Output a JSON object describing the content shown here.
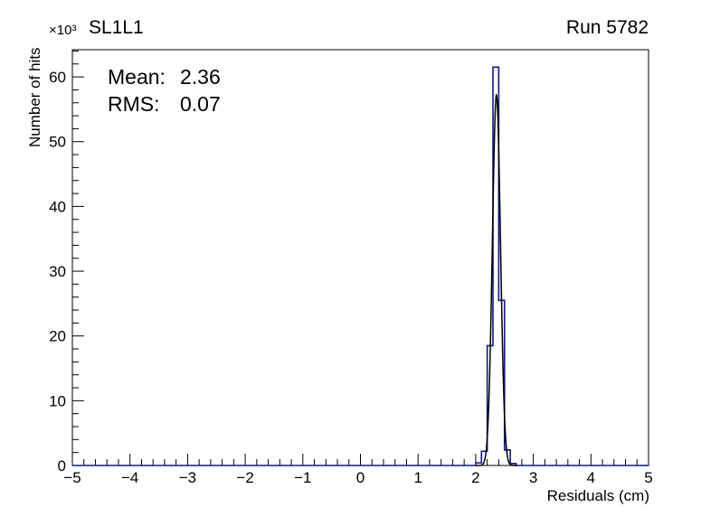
{
  "header": {
    "title": "SL1L1",
    "run_label": "Run 5782",
    "y_axis_exponent": "×10³"
  },
  "stats": {
    "mean_label": "Mean:",
    "mean_value": "2.36",
    "rms_label": "RMS:",
    "rms_value": "0.07"
  },
  "chart_data": {
    "type": "bar",
    "subtype": "step-histogram",
    "title": "SL1L1",
    "top_right_label": "Run 5782",
    "xlabel": "Residuals (cm)",
    "ylabel": "Number of hits",
    "y_scale_exponent": "×10³",
    "xlim": [
      -5,
      5
    ],
    "ylim": [
      0,
      64.2
    ],
    "x_ticks": [
      -5,
      -4,
      -3,
      -2,
      -1,
      0,
      1,
      2,
      3,
      4,
      5
    ],
    "x_tick_labels": [
      "−5",
      "−4",
      "−3",
      "−2",
      "−1",
      "0",
      "1",
      "2",
      "3",
      "4",
      "5"
    ],
    "x_minor_step": 0.2,
    "y_ticks": [
      0,
      10,
      20,
      30,
      40,
      50,
      60
    ],
    "y_tick_labels": [
      "0",
      "10",
      "20",
      "30",
      "40",
      "50",
      "60"
    ],
    "y_minor_step": 2,
    "grid": false,
    "legend": "none",
    "annotations": {
      "mean": 2.36,
      "rms": 0.07
    },
    "histogram": {
      "color": "#14148c",
      "line_width": 1.6,
      "bin_width": 0.1,
      "values_scale": "thousands of hits",
      "bins": [
        {
          "x_low": 2.0,
          "value": 0.4
        },
        {
          "x_low": 2.1,
          "value": 2.2
        },
        {
          "x_low": 2.2,
          "value": 18.5
        },
        {
          "x_low": 2.3,
          "value": 61.5
        },
        {
          "x_low": 2.4,
          "value": 25.5
        },
        {
          "x_low": 2.5,
          "value": 2.4
        },
        {
          "x_low": 2.6,
          "value": 0.3
        }
      ]
    },
    "fit": {
      "type": "gaussian",
      "mean": 2.36,
      "sigma": 0.07,
      "amplitude": 57.2,
      "range": [
        2.0,
        2.72
      ],
      "color": "#000000",
      "line_width": 1.5
    }
  }
}
